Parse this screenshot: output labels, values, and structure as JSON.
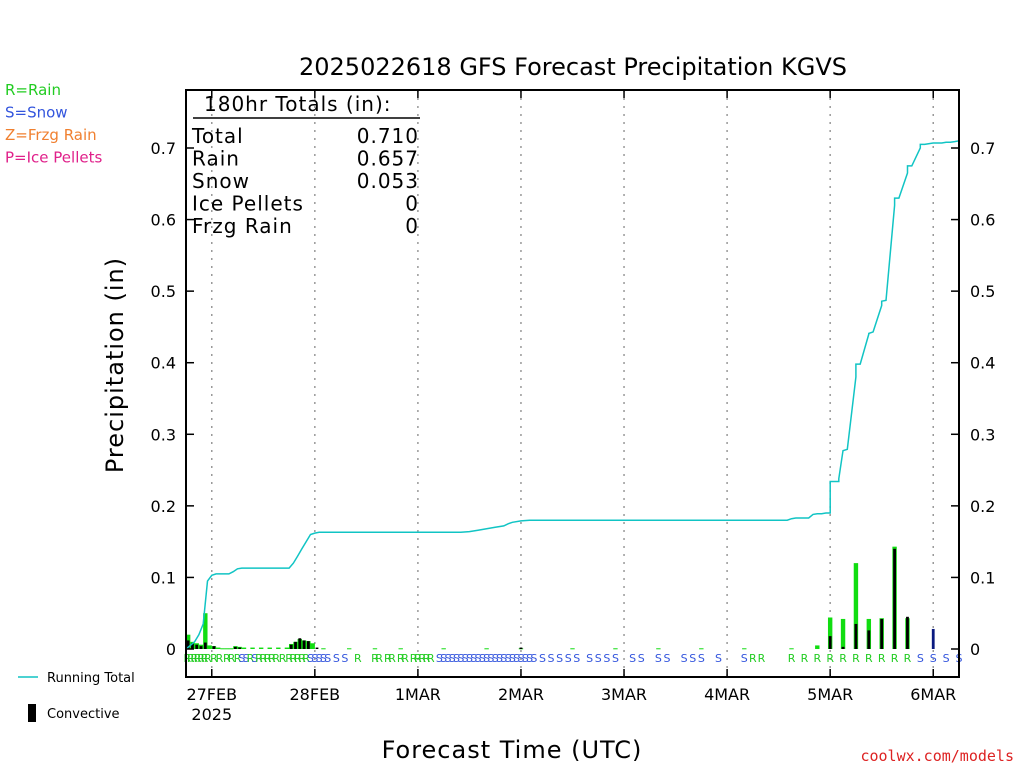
{
  "chart_data": {
    "type": "line",
    "title": "2025022618 GFS Forecast Precipitation KGVS",
    "ylabel": "Precipitation (in)",
    "xlabel": "Forecast Time (UTC)",
    "ylim": [
      0,
      0.78
    ],
    "yticks": [
      "0",
      "0.1",
      "0.2",
      "0.3",
      "0.4",
      "0.5",
      "0.6",
      "0.7"
    ],
    "x_ticks": [
      {
        "label": "27FEB",
        "sub": "2025",
        "hour": 6
      },
      {
        "label": "28FEB",
        "sub": "",
        "hour": 30
      },
      {
        "label": "1MAR",
        "sub": "",
        "hour": 54
      },
      {
        "label": "2MAR",
        "sub": "",
        "hour": 78
      },
      {
        "label": "3MAR",
        "sub": "",
        "hour": 102
      },
      {
        "label": "4MAR",
        "sub": "",
        "hour": 126
      },
      {
        "label": "5MAR",
        "sub": "",
        "hour": 150
      },
      {
        "label": "6MAR",
        "sub": "",
        "hour": 174
      }
    ],
    "xlim_hours": [
      0,
      180
    ],
    "grid": "vertical dotted",
    "type_legend": [
      {
        "text": "R=Rain",
        "color": "#22cc22"
      },
      {
        "text": "S=Snow",
        "color": "#3355dd"
      },
      {
        "text": "Z=Frzg Rain",
        "color": "#f08030"
      },
      {
        "text": "P=Ice Pellets",
        "color": "#e0208a"
      }
    ],
    "series_legend": [
      {
        "text": "Running Total",
        "color": "#11c4c4"
      },
      {
        "text": "Convective",
        "color": "#000000"
      }
    ],
    "totals": {
      "header": "180hr Totals (in):",
      "rows": [
        {
          "label": "Total",
          "value": "0.710"
        },
        {
          "label": "Rain",
          "value": "0.657"
        },
        {
          "label": "Snow",
          "value": "0.053"
        },
        {
          "label": "Ice Pellets",
          "value": "0"
        },
        {
          "label": "Frzg Rain",
          "value": "0"
        }
      ]
    },
    "running_total": {
      "name": "Running Total",
      "color": "#11c4c4",
      "x": [
        0,
        1,
        2,
        3,
        4,
        5,
        6,
        7,
        8,
        9,
        10,
        11,
        12,
        13,
        14,
        15,
        16,
        17,
        18,
        19,
        20,
        21,
        22,
        24,
        25,
        26,
        27,
        28,
        29,
        30,
        31,
        32,
        33,
        34,
        36,
        40,
        44,
        48,
        52,
        56,
        60,
        62,
        64,
        66,
        68,
        70,
        72,
        74,
        75,
        76,
        78,
        80,
        90,
        100,
        110,
        120,
        130,
        140,
        141,
        142,
        144,
        145,
        146,
        147,
        148,
        149,
        150,
        150,
        152,
        152,
        153,
        154,
        154,
        156,
        156,
        157,
        159,
        159,
        160,
        162,
        162,
        163,
        165,
        165,
        166,
        168,
        168,
        169,
        171,
        171,
        172,
        174,
        175,
        176,
        177,
        178,
        179,
        180
      ],
      "y": [
        0.0,
        0.005,
        0.01,
        0.02,
        0.035,
        0.095,
        0.103,
        0.105,
        0.105,
        0.105,
        0.105,
        0.108,
        0.112,
        0.113,
        0.113,
        0.113,
        0.113,
        0.113,
        0.113,
        0.113,
        0.113,
        0.113,
        0.113,
        0.113,
        0.12,
        0.13,
        0.14,
        0.15,
        0.16,
        0.162,
        0.163,
        0.163,
        0.163,
        0.163,
        0.163,
        0.163,
        0.163,
        0.163,
        0.163,
        0.163,
        0.163,
        0.163,
        0.163,
        0.164,
        0.166,
        0.168,
        0.17,
        0.172,
        0.175,
        0.177,
        0.179,
        0.18,
        0.18,
        0.18,
        0.18,
        0.18,
        0.18,
        0.18,
        0.182,
        0.183,
        0.183,
        0.183,
        0.188,
        0.189,
        0.189,
        0.19,
        0.19,
        0.234,
        0.234,
        0.238,
        0.277,
        0.279,
        0.279,
        0.38,
        0.398,
        0.398,
        0.44,
        0.441,
        0.443,
        0.48,
        0.486,
        0.487,
        0.62,
        0.63,
        0.63,
        0.665,
        0.675,
        0.675,
        0.7,
        0.705,
        0.705,
        0.707,
        0.707,
        0.707,
        0.708,
        0.708,
        0.709,
        0.71
      ]
    },
    "precip_bars": {
      "name": "3hr precip",
      "x": [
        0.5,
        1.5,
        2.5,
        3.5,
        4.5,
        5.5,
        6.5,
        7.5,
        8.5,
        9.5,
        10.5,
        11.5,
        12.5,
        13.5,
        15.5,
        17.5,
        19.5,
        21.5,
        23.5,
        24.5,
        25.5,
        26.5,
        27.5,
        28.5,
        29.5,
        32,
        38,
        44,
        50,
        60,
        70,
        78,
        90,
        100,
        110,
        120,
        130,
        141,
        147,
        150,
        153,
        156,
        159,
        162,
        165,
        168,
        171
      ],
      "values": [
        0.02,
        0.01,
        0.008,
        0.006,
        0.05,
        0.005,
        0.004,
        0.002,
        0.001,
        0.001,
        0.001,
        0.004,
        0.003,
        0.002,
        0.002,
        0.002,
        0.002,
        0.002,
        0.002,
        0.007,
        0.01,
        0.014,
        0.012,
        0.011,
        0.008,
        0.001,
        0.001,
        0.001,
        0.001,
        0.001,
        0.001,
        0.001,
        0.001,
        0.001,
        0.001,
        0.001,
        0.001,
        0.001,
        0.005,
        0.044,
        0.042,
        0.12,
        0.042,
        0.043,
        0.143,
        0.043,
        0.0
      ],
      "colors": [
        "#11dd11",
        "#11dd11",
        "#11dd11",
        "#11dd11",
        "#11dd11",
        "#11dd11",
        "#11dd11",
        "#11dd11",
        "#11dd11",
        "#11dd11",
        "#11dd11",
        "#11dd11",
        "#11dd11",
        "#11dd11",
        "#11dd11",
        "#11dd11",
        "#11dd11",
        "#11dd11",
        "#11dd11",
        "#11dd11",
        "#11dd11",
        "#11dd11",
        "#11dd11",
        "#11dd11",
        "#11dd11",
        "#11dd11",
        "#11dd11",
        "#11dd11",
        "#11dd11",
        "#11dd11",
        "#11dd11",
        "#11dd11",
        "#11dd11",
        "#11dd11",
        "#11dd11",
        "#11dd11",
        "#11dd11",
        "#11dd11",
        "#11dd11",
        "#11dd11",
        "#11dd11",
        "#11dd11",
        "#11dd11",
        "#11dd11",
        "#11dd11",
        "#11dd11",
        "#11dd11"
      ]
    },
    "convective_bars": {
      "name": "Convective",
      "x": [
        0.5,
        1.5,
        2.5,
        3.5,
        4.5,
        6.5,
        11.5,
        12.5,
        24.5,
        25.5,
        26.5,
        27.5,
        28.5,
        30.5,
        78,
        150,
        153,
        156,
        159,
        162,
        165,
        168,
        174
      ],
      "values": [
        0.012,
        0.008,
        0.006,
        0.004,
        0.009,
        0.004,
        0.003,
        0.002,
        0.006,
        0.01,
        0.015,
        0.012,
        0.011,
        0.002,
        0.002,
        0.018,
        0.003,
        0.035,
        0.026,
        0.042,
        0.14,
        0.045,
        0.028
      ],
      "colors": [
        "#000000",
        "#000000",
        "#000000",
        "#000000",
        "#000000",
        "#000000",
        "#000000",
        "#000000",
        "#000000",
        "#000000",
        "#000000",
        "#000000",
        "#000000",
        "#000000",
        "#000000",
        "#000000",
        "#000000",
        "#000000",
        "#000000",
        "#000000",
        "#000000",
        "#000000",
        "#0a1a80"
      ]
    },
    "ptype_labels": [
      {
        "x": 0.3,
        "t": "R",
        "c": "#22cc22"
      },
      {
        "x": 1.1,
        "t": "R",
        "c": "#22cc22"
      },
      {
        "x": 1.9,
        "t": "R",
        "c": "#22cc22"
      },
      {
        "x": 2.7,
        "t": "R",
        "c": "#22cc22"
      },
      {
        "x": 3.5,
        "t": "R",
        "c": "#22cc22"
      },
      {
        "x": 4.3,
        "t": "R",
        "c": "#22cc22"
      },
      {
        "x": 5.1,
        "t": "R",
        "c": "#22cc22"
      },
      {
        "x": 6.5,
        "t": "R",
        "c": "#22cc22"
      },
      {
        "x": 7.8,
        "t": "R",
        "c": "#22cc22"
      },
      {
        "x": 9.5,
        "t": "R",
        "c": "#22cc22"
      },
      {
        "x": 10.6,
        "t": "R",
        "c": "#22cc22"
      },
      {
        "x": 12.0,
        "t": "R",
        "c": "#22cc22"
      },
      {
        "x": 13.0,
        "t": "S",
        "c": "#3355dd"
      },
      {
        "x": 14.0,
        "t": "S",
        "c": "#3355dd"
      },
      {
        "x": 15.0,
        "t": "R",
        "c": "#22cc22"
      },
      {
        "x": 16.0,
        "t": "S",
        "c": "#3355dd"
      },
      {
        "x": 17.0,
        "t": "R",
        "c": "#22cc22"
      },
      {
        "x": 18.0,
        "t": "R",
        "c": "#22cc22"
      },
      {
        "x": 19.0,
        "t": "R",
        "c": "#22cc22"
      },
      {
        "x": 20.0,
        "t": "R",
        "c": "#22cc22"
      },
      {
        "x": 21.0,
        "t": "R",
        "c": "#22cc22"
      },
      {
        "x": 22.5,
        "t": "R",
        "c": "#22cc22"
      },
      {
        "x": 24.0,
        "t": "R",
        "c": "#22cc22"
      },
      {
        "x": 25.0,
        "t": "R",
        "c": "#22cc22"
      },
      {
        "x": 26.0,
        "t": "R",
        "c": "#22cc22"
      },
      {
        "x": 27.0,
        "t": "R",
        "c": "#22cc22"
      },
      {
        "x": 28.0,
        "t": "R",
        "c": "#22cc22"
      },
      {
        "x": 29.0,
        "t": "S",
        "c": "#3355dd"
      },
      {
        "x": 30.0,
        "t": "S",
        "c": "#3355dd"
      },
      {
        "x": 31.0,
        "t": "S",
        "c": "#3355dd"
      },
      {
        "x": 32.0,
        "t": "S",
        "c": "#3355dd"
      },
      {
        "x": 33.0,
        "t": "S",
        "c": "#3355dd"
      },
      {
        "x": 35.0,
        "t": "S",
        "c": "#3355dd"
      },
      {
        "x": 37.0,
        "t": "S",
        "c": "#3355dd"
      },
      {
        "x": 40.0,
        "t": "R",
        "c": "#22cc22"
      },
      {
        "x": 44.0,
        "t": "R",
        "c": "#22cc22"
      },
      {
        "x": 45.0,
        "t": "R",
        "c": "#22cc22"
      },
      {
        "x": 47.0,
        "t": "R",
        "c": "#22cc22"
      },
      {
        "x": 48.0,
        "t": "R",
        "c": "#22cc22"
      },
      {
        "x": 50.0,
        "t": "R",
        "c": "#22cc22"
      },
      {
        "x": 51.0,
        "t": "R",
        "c": "#22cc22"
      },
      {
        "x": 53.0,
        "t": "R",
        "c": "#22cc22"
      },
      {
        "x": 54.0,
        "t": "R",
        "c": "#22cc22"
      },
      {
        "x": 55.0,
        "t": "R",
        "c": "#22cc22"
      },
      {
        "x": 56.0,
        "t": "R",
        "c": "#22cc22"
      },
      {
        "x": 57.0,
        "t": "R",
        "c": "#22cc22"
      },
      {
        "x": 59.0,
        "t": "S",
        "c": "#3355dd"
      },
      {
        "x": 60.0,
        "t": "S",
        "c": "#3355dd"
      },
      {
        "x": 61.0,
        "t": "S",
        "c": "#3355dd"
      },
      {
        "x": 62.0,
        "t": "S",
        "c": "#3355dd"
      },
      {
        "x": 63.0,
        "t": "S",
        "c": "#3355dd"
      },
      {
        "x": 64.0,
        "t": "S",
        "c": "#3355dd"
      },
      {
        "x": 65.0,
        "t": "S",
        "c": "#3355dd"
      },
      {
        "x": 66.0,
        "t": "S",
        "c": "#3355dd"
      },
      {
        "x": 67.0,
        "t": "S",
        "c": "#3355dd"
      },
      {
        "x": 68.0,
        "t": "S",
        "c": "#3355dd"
      },
      {
        "x": 69.0,
        "t": "S",
        "c": "#3355dd"
      },
      {
        "x": 70.0,
        "t": "S",
        "c": "#3355dd"
      },
      {
        "x": 71.0,
        "t": "S",
        "c": "#3355dd"
      },
      {
        "x": 72.0,
        "t": "S",
        "c": "#3355dd"
      },
      {
        "x": 73.0,
        "t": "S",
        "c": "#3355dd"
      },
      {
        "x": 74.0,
        "t": "S",
        "c": "#3355dd"
      },
      {
        "x": 75.0,
        "t": "S",
        "c": "#3355dd"
      },
      {
        "x": 76.0,
        "t": "S",
        "c": "#3355dd"
      },
      {
        "x": 77.0,
        "t": "S",
        "c": "#3355dd"
      },
      {
        "x": 78.0,
        "t": "S",
        "c": "#3355dd"
      },
      {
        "x": 79.0,
        "t": "S",
        "c": "#3355dd"
      },
      {
        "x": 80.0,
        "t": "S",
        "c": "#3355dd"
      },
      {
        "x": 81.0,
        "t": "S",
        "c": "#3355dd"
      },
      {
        "x": 83.0,
        "t": "S",
        "c": "#3355dd"
      },
      {
        "x": 85.0,
        "t": "S",
        "c": "#3355dd"
      },
      {
        "x": 87.0,
        "t": "S",
        "c": "#3355dd"
      },
      {
        "x": 89.0,
        "t": "S",
        "c": "#3355dd"
      },
      {
        "x": 91.0,
        "t": "S",
        "c": "#3355dd"
      },
      {
        "x": 94.0,
        "t": "S",
        "c": "#3355dd"
      },
      {
        "x": 96.0,
        "t": "S",
        "c": "#3355dd"
      },
      {
        "x": 98.0,
        "t": "S",
        "c": "#3355dd"
      },
      {
        "x": 100.0,
        "t": "S",
        "c": "#3355dd"
      },
      {
        "x": 104.0,
        "t": "S",
        "c": "#3355dd"
      },
      {
        "x": 106.0,
        "t": "S",
        "c": "#3355dd"
      },
      {
        "x": 110.0,
        "t": "S",
        "c": "#3355dd"
      },
      {
        "x": 112.0,
        "t": "S",
        "c": "#3355dd"
      },
      {
        "x": 116.0,
        "t": "S",
        "c": "#3355dd"
      },
      {
        "x": 118.0,
        "t": "S",
        "c": "#3355dd"
      },
      {
        "x": 120.0,
        "t": "S",
        "c": "#3355dd"
      },
      {
        "x": 124.0,
        "t": "S",
        "c": "#3355dd"
      },
      {
        "x": 130.0,
        "t": "S",
        "c": "#3355dd"
      },
      {
        "x": 132.0,
        "t": "R",
        "c": "#22cc22"
      },
      {
        "x": 134.0,
        "t": "R",
        "c": "#22cc22"
      },
      {
        "x": 141.0,
        "t": "R",
        "c": "#22cc22"
      },
      {
        "x": 144.0,
        "t": "R",
        "c": "#22cc22"
      },
      {
        "x": 147.0,
        "t": "R",
        "c": "#22cc22"
      },
      {
        "x": 150.0,
        "t": "R",
        "c": "#22cc22"
      },
      {
        "x": 153.0,
        "t": "R",
        "c": "#22cc22"
      },
      {
        "x": 156.0,
        "t": "R",
        "c": "#22cc22"
      },
      {
        "x": 159.0,
        "t": "R",
        "c": "#22cc22"
      },
      {
        "x": 162.0,
        "t": "R",
        "c": "#22cc22"
      },
      {
        "x": 165.0,
        "t": "R",
        "c": "#22cc22"
      },
      {
        "x": 168.0,
        "t": "R",
        "c": "#22cc22"
      },
      {
        "x": 171.0,
        "t": "S",
        "c": "#3355dd"
      },
      {
        "x": 174.0,
        "t": "S",
        "c": "#3355dd"
      },
      {
        "x": 177.0,
        "t": "S",
        "c": "#3355dd"
      },
      {
        "x": 180.0,
        "t": "S",
        "c": "#3355dd"
      }
    ]
  },
  "credit": "coolwx.com/models"
}
